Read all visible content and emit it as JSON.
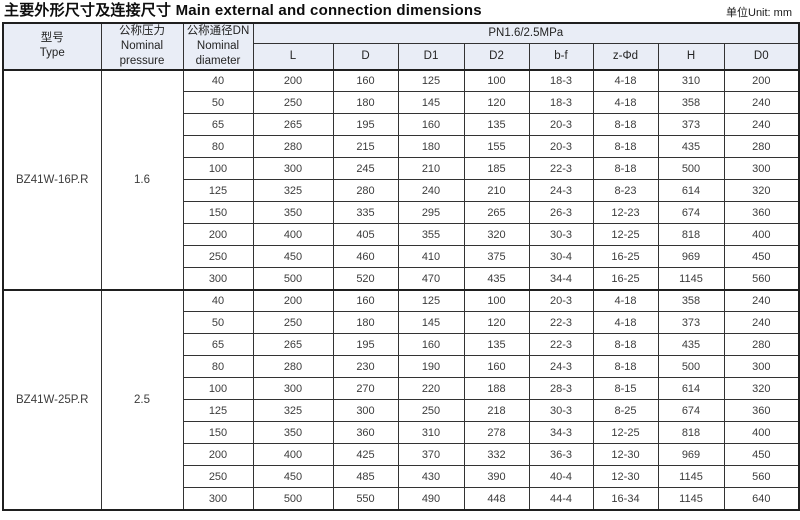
{
  "header": {
    "title": "主要外形尺寸及连接尺寸 Main external and connection dimensions",
    "unit": "单位Unit: mm"
  },
  "table": {
    "headers": {
      "type": "型号\nType",
      "pressure": "公称压力\nNominal\npressure",
      "diameter": "公称通径DN\nNominal\ndiameter",
      "pn_class": "PN1.6/2.5MPa",
      "dims": [
        "L",
        "D",
        "D1",
        "D2",
        "b-f",
        "z-Φd",
        "H",
        "D0"
      ]
    },
    "groups": [
      {
        "type": "BZ41W-16P.R",
        "pressure": "1.6",
        "rows": [
          [
            "40",
            "200",
            "160",
            "125",
            "100",
            "18-3",
            "4-18",
            "310",
            "200"
          ],
          [
            "50",
            "250",
            "180",
            "145",
            "120",
            "18-3",
            "4-18",
            "358",
            "240"
          ],
          [
            "65",
            "265",
            "195",
            "160",
            "135",
            "20-3",
            "8-18",
            "373",
            "240"
          ],
          [
            "80",
            "280",
            "215",
            "180",
            "155",
            "20-3",
            "8-18",
            "435",
            "280"
          ],
          [
            "100",
            "300",
            "245",
            "210",
            "185",
            "22-3",
            "8-18",
            "500",
            "300"
          ],
          [
            "125",
            "325",
            "280",
            "240",
            "210",
            "24-3",
            "8-23",
            "614",
            "320"
          ],
          [
            "150",
            "350",
            "335",
            "295",
            "265",
            "26-3",
            "12-23",
            "674",
            "360"
          ],
          [
            "200",
            "400",
            "405",
            "355",
            "320",
            "30-3",
            "12-25",
            "818",
            "400"
          ],
          [
            "250",
            "450",
            "460",
            "410",
            "375",
            "30-4",
            "16-25",
            "969",
            "450"
          ],
          [
            "300",
            "500",
            "520",
            "470",
            "435",
            "34-4",
            "16-25",
            "1145",
            "560"
          ]
        ]
      },
      {
        "type": "BZ41W-25P.R",
        "pressure": "2.5",
        "rows": [
          [
            "40",
            "200",
            "160",
            "125",
            "100",
            "20-3",
            "4-18",
            "358",
            "240"
          ],
          [
            "50",
            "250",
            "180",
            "145",
            "120",
            "22-3",
            "4-18",
            "373",
            "240"
          ],
          [
            "65",
            "265",
            "195",
            "160",
            "135",
            "22-3",
            "8-18",
            "435",
            "280"
          ],
          [
            "80",
            "280",
            "230",
            "190",
            "160",
            "24-3",
            "8-18",
            "500",
            "300"
          ],
          [
            "100",
            "300",
            "270",
            "220",
            "188",
            "28-3",
            "8-15",
            "614",
            "320"
          ],
          [
            "125",
            "325",
            "300",
            "250",
            "218",
            "30-3",
            "8-25",
            "674",
            "360"
          ],
          [
            "150",
            "350",
            "360",
            "310",
            "278",
            "34-3",
            "12-25",
            "818",
            "400"
          ],
          [
            "200",
            "400",
            "425",
            "370",
            "332",
            "36-3",
            "12-30",
            "969",
            "450"
          ],
          [
            "250",
            "450",
            "485",
            "430",
            "390",
            "40-4",
            "12-30",
            "1145",
            "560"
          ],
          [
            "300",
            "500",
            "550",
            "490",
            "448",
            "44-4",
            "16-34",
            "1145",
            "640"
          ]
        ]
      }
    ]
  }
}
